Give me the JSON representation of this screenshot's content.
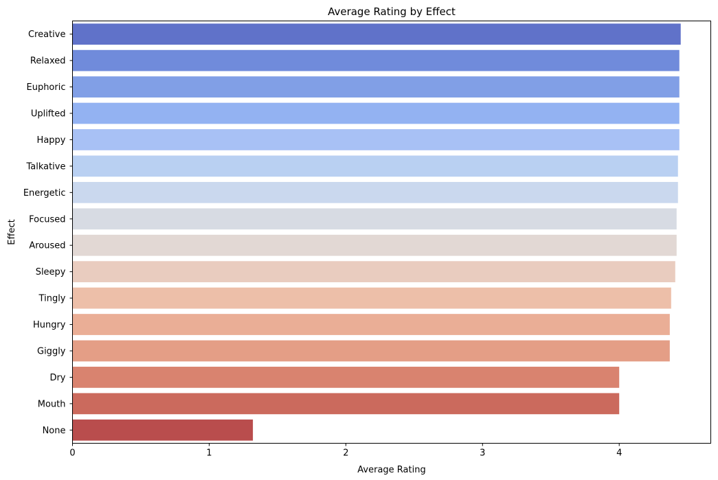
{
  "chart_data": {
    "type": "bar",
    "orientation": "horizontal",
    "title": "Average Rating by Effect",
    "xlabel": "Average Rating",
    "ylabel": "Effect",
    "xlim": [
      0,
      4.67
    ],
    "xticks": [
      0,
      1,
      2,
      3,
      4
    ],
    "grid": false,
    "categories": [
      "Creative",
      "Relaxed",
      "Euphoric",
      "Uplifted",
      "Happy",
      "Talkative",
      "Energetic",
      "Focused",
      "Aroused",
      "Sleepy",
      "Tingly",
      "Hungry",
      "Giggly",
      "Dry",
      "Mouth",
      "None"
    ],
    "values": [
      4.45,
      4.44,
      4.44,
      4.44,
      4.44,
      4.43,
      4.43,
      4.42,
      4.42,
      4.41,
      4.38,
      4.37,
      4.37,
      4.0,
      4.0,
      1.32
    ],
    "colors": [
      "#6072c9",
      "#708bdb",
      "#819fe6",
      "#93b2f2",
      "#a8c1f5",
      "#b9d0f2",
      "#cad8ee",
      "#d7dbe3",
      "#e2d8d4",
      "#e9ccbf",
      "#edbfa9",
      "#eaae96",
      "#e49e86",
      "#d9836f",
      "#cb6a5d",
      "#b94d4d"
    ]
  }
}
